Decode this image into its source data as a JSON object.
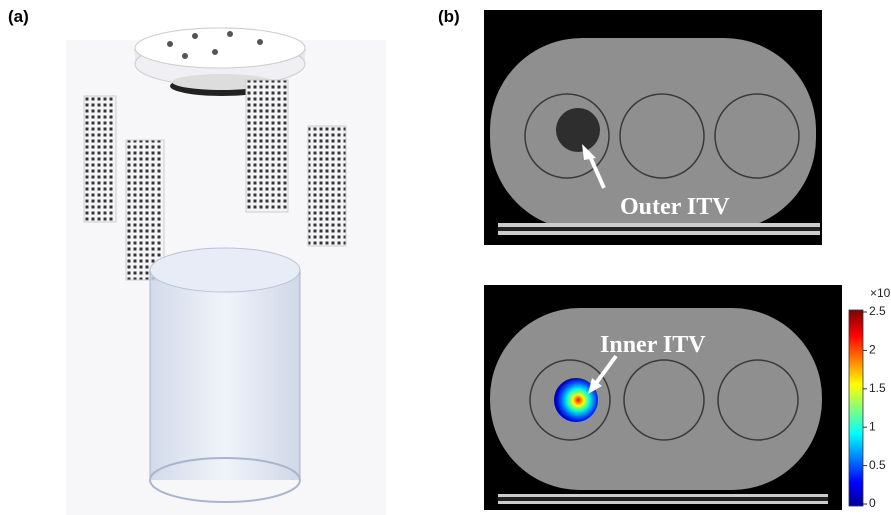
{
  "panels": [
    {
      "label": "(a)"
    },
    {
      "label": "(b)",
      "annotations": [
        "Outer ITV",
        "Inner ITV"
      ],
      "colorbar": {
        "exponent": "×10",
        "ticks": [
          "0",
          "0.5",
          "1",
          "1.5",
          "2",
          "2.5"
        ]
      }
    }
  ]
}
